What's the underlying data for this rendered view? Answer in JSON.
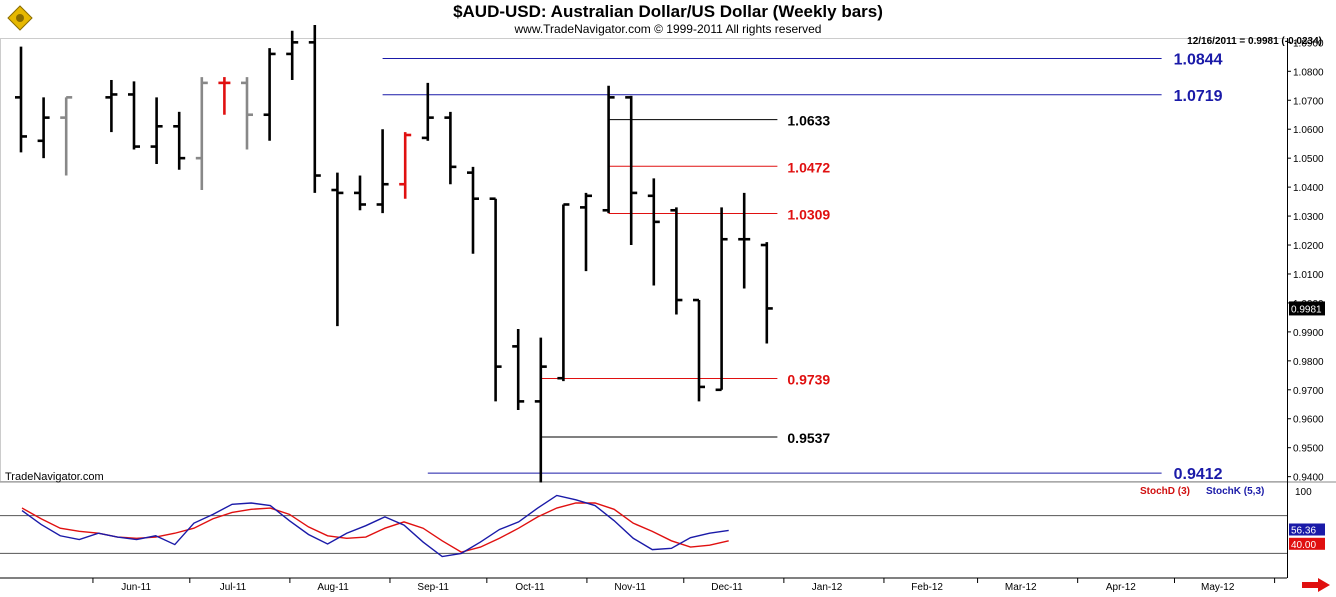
{
  "header": {
    "title": "$AUD-USD:  Australian Dollar/US Dollar  (Weekly bars)",
    "subtitle": "www.TradeNavigator.com © 1999-2011 All rights reserved",
    "last_info": "12/16/2011 = 0.9981 (-0.0234)",
    "brand": "TradeNavigator.com"
  },
  "colors": {
    "bar": "#000000",
    "bar_gray": "#888888",
    "bar_red": "#e01010",
    "line_blue": "#1a1aa8",
    "line_red": "#e01010",
    "stochd": "#e01010",
    "stochk": "#1a1aa8",
    "logo": "#e6b800",
    "arrow": "#e01010"
  },
  "chart_data": [
    {
      "type": "bar",
      "subtype": "ohlc",
      "title": "$AUD-USD:  Australian Dollar/US Dollar  (Weekly bars)",
      "ylim": [
        0.9385,
        1.0915
      ],
      "y_ticks": [
        "1.0900",
        "1.0800",
        "1.0700",
        "1.0600",
        "1.0500",
        "1.0400",
        "1.0300",
        "1.0200",
        "1.0100",
        "1.0000",
        "0.9900",
        "0.9800",
        "0.9700",
        "0.9600",
        "0.9500",
        "0.9400"
      ],
      "x_ticks": [
        "Jun-11",
        "Jul-11",
        "Aug-11",
        "Sep-11",
        "Oct-11",
        "Nov-11",
        "Dec-11",
        "Jan-12",
        "Feb-12",
        "Mar-12",
        "Apr-12",
        "May-12"
      ],
      "last_price_label": "0.9981",
      "bars": [
        {
          "date": "2011-05-06",
          "o": 1.071,
          "h": 1.0885,
          "l": 1.052,
          "c": 1.0575,
          "color": "black"
        },
        {
          "date": "2011-05-13",
          "o": 1.056,
          "h": 1.071,
          "l": 1.05,
          "c": 1.064,
          "color": "black"
        },
        {
          "date": "2011-05-20",
          "o": 1.064,
          "h": 1.071,
          "l": 1.044,
          "c": 1.071,
          "color": "gray"
        },
        {
          "date": "2011-06-03",
          "o": 1.071,
          "h": 1.077,
          "l": 1.059,
          "c": 1.072,
          "color": "black"
        },
        {
          "date": "2011-06-10",
          "o": 1.072,
          "h": 1.0765,
          "l": 1.053,
          "c": 1.054,
          "color": "black"
        },
        {
          "date": "2011-06-17",
          "o": 1.054,
          "h": 1.071,
          "l": 1.048,
          "c": 1.061,
          "color": "black"
        },
        {
          "date": "2011-06-24",
          "o": 1.061,
          "h": 1.066,
          "l": 1.046,
          "c": 1.05,
          "color": "black"
        },
        {
          "date": "2011-07-01",
          "o": 1.05,
          "h": 1.078,
          "l": 1.039,
          "c": 1.076,
          "color": "gray"
        },
        {
          "date": "2011-07-08",
          "o": 1.076,
          "h": 1.078,
          "l": 1.065,
          "c": 1.076,
          "color": "red"
        },
        {
          "date": "2011-07-15",
          "o": 1.076,
          "h": 1.078,
          "l": 1.053,
          "c": 1.065,
          "color": "gray"
        },
        {
          "date": "2011-07-22",
          "o": 1.065,
          "h": 1.088,
          "l": 1.056,
          "c": 1.086,
          "color": "black"
        },
        {
          "date": "2011-07-29",
          "o": 1.086,
          "h": 1.094,
          "l": 1.077,
          "c": 1.09,
          "color": "black"
        },
        {
          "date": "2011-08-05",
          "o": 1.09,
          "h": 1.096,
          "l": 1.038,
          "c": 1.044,
          "color": "black"
        },
        {
          "date": "2011-08-12",
          "o": 1.039,
          "h": 1.045,
          "l": 0.992,
          "c": 1.038,
          "color": "black"
        },
        {
          "date": "2011-08-19",
          "o": 1.038,
          "h": 1.044,
          "l": 1.032,
          "c": 1.034,
          "color": "black"
        },
        {
          "date": "2011-08-26",
          "o": 1.034,
          "h": 1.06,
          "l": 1.031,
          "c": 1.041,
          "color": "black"
        },
        {
          "date": "2011-09-02",
          "o": 1.041,
          "h": 1.059,
          "l": 1.036,
          "c": 1.058,
          "color": "red"
        },
        {
          "date": "2011-09-09",
          "o": 1.057,
          "h": 1.076,
          "l": 1.056,
          "c": 1.064,
          "color": "black"
        },
        {
          "date": "2011-09-16",
          "o": 1.064,
          "h": 1.066,
          "l": 1.041,
          "c": 1.047,
          "color": "black"
        },
        {
          "date": "2011-09-23",
          "o": 1.045,
          "h": 1.047,
          "l": 1.017,
          "c": 1.036,
          "color": "black"
        },
        {
          "date": "2011-09-30",
          "o": 1.036,
          "h": 1.036,
          "l": 0.966,
          "c": 0.978,
          "color": "black"
        },
        {
          "date": "2011-10-07",
          "o": 0.985,
          "h": 0.991,
          "l": 0.963,
          "c": 0.966,
          "color": "black"
        },
        {
          "date": "2011-10-14",
          "o": 0.966,
          "h": 0.988,
          "l": 0.938,
          "c": 0.978,
          "color": "black"
        },
        {
          "date": "2011-10-21",
          "o": 0.974,
          "h": 1.034,
          "l": 0.973,
          "c": 1.034,
          "color": "black"
        },
        {
          "date": "2011-10-28",
          "o": 1.033,
          "h": 1.038,
          "l": 1.011,
          "c": 1.037,
          "color": "black"
        },
        {
          "date": "2011-11-04",
          "o": 1.032,
          "h": 1.075,
          "l": 1.031,
          "c": 1.071,
          "color": "black"
        },
        {
          "date": "2011-11-11",
          "o": 1.071,
          "h": 1.0715,
          "l": 1.02,
          "c": 1.038,
          "color": "black"
        },
        {
          "date": "2011-11-18",
          "o": 1.037,
          "h": 1.043,
          "l": 1.006,
          "c": 1.028,
          "color": "black"
        },
        {
          "date": "2011-11-25",
          "o": 1.032,
          "h": 1.033,
          "l": 0.996,
          "c": 1.001,
          "color": "black"
        },
        {
          "date": "2011-12-02",
          "o": 1.001,
          "h": 1.001,
          "l": 0.966,
          "c": 0.971,
          "color": "black"
        },
        {
          "date": "2011-12-09",
          "o": 0.97,
          "h": 1.033,
          "l": 0.97,
          "c": 1.022,
          "color": "black"
        },
        {
          "date": "2011-12-16",
          "o": 1.022,
          "h": 1.038,
          "l": 1.005,
          "c": 1.022,
          "color": "black"
        },
        {
          "date": "2011-12-23",
          "o": 1.02,
          "h": 1.021,
          "l": 0.986,
          "c": 0.9981,
          "color": "black"
        }
      ],
      "levels": [
        {
          "label": "1.0844",
          "value": 1.0844,
          "color": "blue",
          "from": "2011-08-26",
          "to": "2012-04-27"
        },
        {
          "label": "1.0719",
          "value": 1.0719,
          "color": "blue",
          "from": "2011-08-26",
          "to": "2012-04-27"
        },
        {
          "label": "1.0633",
          "value": 1.0633,
          "color": "black",
          "from": "2011-11-04",
          "to": "2011-12-30"
        },
        {
          "label": "1.0472",
          "value": 1.0472,
          "color": "red",
          "from": "2011-11-04",
          "to": "2011-12-30"
        },
        {
          "label": "1.0309",
          "value": 1.0309,
          "color": "red",
          "from": "2011-11-04",
          "to": "2011-12-30"
        },
        {
          "label": "0.9739",
          "value": 0.9739,
          "color": "red",
          "from": "2011-10-14",
          "to": "2011-12-30"
        },
        {
          "label": "0.9537",
          "value": 0.9537,
          "color": "black",
          "from": "2011-10-14",
          "to": "2011-12-30"
        },
        {
          "label": "0.9412",
          "value": 0.9412,
          "color": "blue",
          "from": "2011-09-09",
          "to": "2012-04-27"
        }
      ]
    },
    {
      "type": "line",
      "ylim": [
        0,
        100
      ],
      "y_ticks": [
        "100"
      ],
      "reference_lines": [
        80,
        20
      ],
      "last_labels": {
        "stochk": "56.36",
        "stochd": "40.00"
      },
      "series": [
        {
          "name": "StochD (3)",
          "key": "stochd",
          "values": [
            [
              0,
              92
            ],
            [
              1,
              75
            ],
            [
              2,
              60
            ],
            [
              3,
              55
            ],
            [
              4,
              52
            ],
            [
              5,
              46
            ],
            [
              6,
              44
            ],
            [
              7,
              46
            ],
            [
              8,
              52
            ],
            [
              9,
              60
            ],
            [
              10,
              75
            ],
            [
              11,
              85
            ],
            [
              12,
              90
            ],
            [
              13,
              92
            ],
            [
              14,
              82
            ],
            [
              15,
              62
            ],
            [
              16,
              48
            ],
            [
              17,
              44
            ],
            [
              18,
              46
            ],
            [
              19,
              60
            ],
            [
              20,
              70
            ],
            [
              21,
              60
            ],
            [
              22,
              40
            ],
            [
              23,
              22
            ],
            [
              24,
              30
            ],
            [
              25,
              44
            ],
            [
              26,
              60
            ],
            [
              27,
              78
            ],
            [
              28,
              92
            ],
            [
              29,
              100
            ],
            [
              30,
              100
            ],
            [
              31,
              90
            ],
            [
              32,
              68
            ],
            [
              33,
              55
            ],
            [
              34,
              40
            ],
            [
              35,
              30
            ],
            [
              36,
              33
            ],
            [
              37,
              40
            ]
          ]
        },
        {
          "name": "StochK (5,3)",
          "key": "stochk",
          "values": [
            [
              0,
              88
            ],
            [
              1,
              66
            ],
            [
              2,
              48
            ],
            [
              3,
              42
            ],
            [
              4,
              52
            ],
            [
              5,
              46
            ],
            [
              6,
              42
            ],
            [
              7,
              48
            ],
            [
              8,
              34
            ],
            [
              9,
              68
            ],
            [
              10,
              82
            ],
            [
              11,
              98
            ],
            [
              12,
              100
            ],
            [
              13,
              96
            ],
            [
              14,
              72
            ],
            [
              15,
              50
            ],
            [
              16,
              35
            ],
            [
              17,
              52
            ],
            [
              18,
              64
            ],
            [
              19,
              78
            ],
            [
              20,
              65
            ],
            [
              21,
              38
            ],
            [
              22,
              15
            ],
            [
              23,
              20
            ],
            [
              24,
              38
            ],
            [
              25,
              58
            ],
            [
              26,
              70
            ],
            [
              27,
              92
            ],
            [
              28,
              112
            ],
            [
              29,
              105
            ],
            [
              30,
              96
            ],
            [
              31,
              72
            ],
            [
              32,
              44
            ],
            [
              33,
              26
            ],
            [
              34,
              28
            ],
            [
              35,
              45
            ],
            [
              36,
              52
            ],
            [
              37,
              56.36
            ]
          ]
        }
      ]
    }
  ]
}
